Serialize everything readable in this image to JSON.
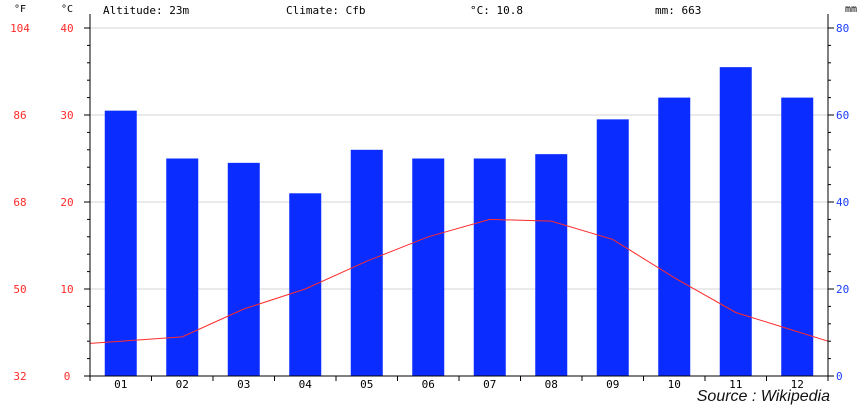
{
  "header": {
    "altitude": "Altitude: 23m",
    "climate": "Climate: Cfb",
    "mean_temp": "°C: 10.8",
    "precip": "mm: 663"
  },
  "source_label": "Source : Wikipedia",
  "chart_data": {
    "type": "bar",
    "categories": [
      "01",
      "02",
      "03",
      "04",
      "05",
      "06",
      "07",
      "08",
      "09",
      "10",
      "11",
      "12"
    ],
    "series": [
      {
        "type": "bar",
        "axis": "mm",
        "values": [
          61,
          50,
          49,
          42,
          52,
          50,
          50,
          51,
          59,
          64,
          71,
          64
        ],
        "color": "#0a2cff"
      },
      {
        "type": "line",
        "axis": "C",
        "values": [
          4.0,
          4.5,
          7.7,
          10.0,
          13.2,
          16.0,
          18.0,
          17.8,
          15.7,
          11.3,
          7.3,
          5.1
        ],
        "color": "#ff2a2a"
      }
    ],
    "axes": {
      "fahrenheit": {
        "unit_label": "°F",
        "ticks": [
          "104",
          "86",
          "68",
          "50",
          "32"
        ],
        "color": "#ff2a2a"
      },
      "celsius": {
        "unit_label": "°C",
        "ticks": [
          "40",
          "30",
          "20",
          "10",
          "0"
        ],
        "range": [
          0,
          40
        ],
        "color": "#ff2a2a"
      },
      "mm": {
        "unit_label": "mm",
        "ticks": [
          "80",
          "60",
          "40",
          "20",
          "0"
        ],
        "range": [
          0,
          80
        ],
        "color": "#1a3cff"
      }
    },
    "grid": true,
    "colors": {
      "bar": "#0a2cff",
      "line": "#ff2a2a",
      "grid": "#d6d6d6",
      "axis": "#000000"
    }
  }
}
